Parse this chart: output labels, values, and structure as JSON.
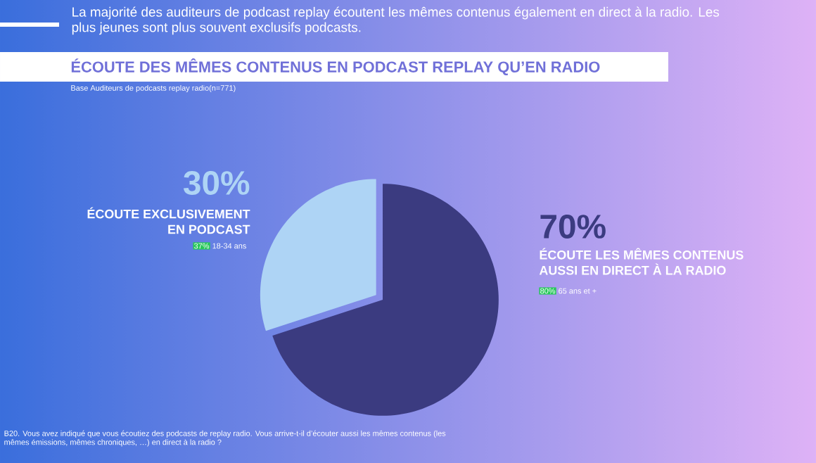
{
  "chart_data": {
    "type": "pie",
    "title": "ÉCOUTE DES MÊMES CONTENUS EN PODCAST REPLAY QU’EN RADIO",
    "subtitle": "Base Auditeurs de podcasts replay radio(n=771)",
    "categories": [
      "ÉCOUTE EXCLUSIVEMENT EN PODCAST",
      "ÉCOUTE LES MÊMES CONTENUS AUSSI EN DIRECT À LA RADIO"
    ],
    "values": [
      30,
      70
    ],
    "value_labels": [
      "30%",
      "70%"
    ],
    "colors": [
      "#aed4f5",
      "#3b3b80"
    ],
    "annotations": [
      "La majorité des auditeurs de podcast replay écoutent les mêmes contenus également en direct à la radio. Les plus jeunes sont plus souvent exclusifs podcasts.",
      "37%",
      "18-34 ans",
      "80%",
      "65 ans et +",
      "B20. Vous avez indiqué que vous écoutiez des podcasts de replay radio. Vous arrive-t-il d’écouter aussi les mêmes contenus (les mêmes émissions, mêmes chroniques, …) en direct à la radio ?"
    ]
  }
}
